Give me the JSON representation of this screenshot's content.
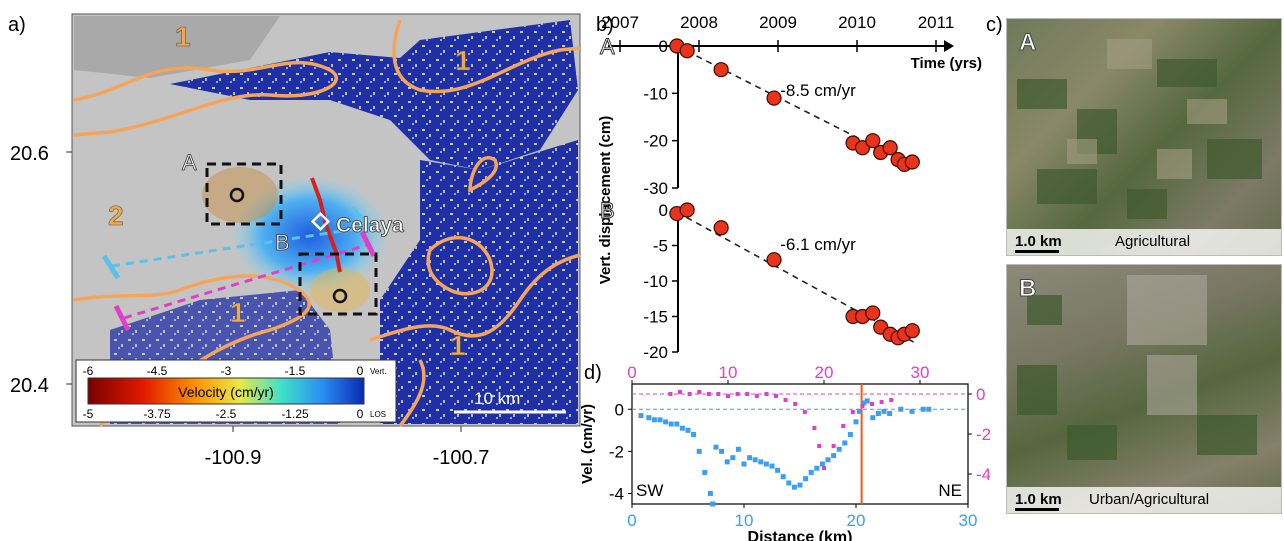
{
  "panel_labels": {
    "a": "a)",
    "b": "b)",
    "c": "c)",
    "d": "d)"
  },
  "map": {
    "lat_ticks": [
      "20.6",
      "20.4"
    ],
    "lon_ticks": [
      "-100.9",
      "-100.7"
    ],
    "zone_labels": [
      "1",
      "1",
      "2",
      "1",
      "1"
    ],
    "box_labels": [
      "A",
      "B"
    ],
    "city_label": "Celaya",
    "scalebar": "10 km",
    "colorbar": {
      "title": "Velocity (cm/yr)",
      "vert_ticks": [
        "-6",
        "-4.5",
        "-3",
        "-1.5",
        "0"
      ],
      "vert_label": "Vert.",
      "los_ticks": [
        "-5",
        "-3.75",
        "-2.5",
        "-1.25",
        "0"
      ],
      "los_label": "LOS"
    },
    "colors": {
      "zone_line": "#f5a55a",
      "profile_cyan": "#5bc0eb",
      "profile_magenta": "#e040c8"
    }
  },
  "chart_data": [
    {
      "type": "scatter",
      "panel": "b",
      "title": "",
      "xlabel": "Time (yrs)",
      "ylabel": "Vert. displacement (cm)",
      "xticks": [
        "2007",
        "2008",
        "2009",
        "2010",
        "2011"
      ],
      "xlim": [
        2007,
        2011
      ],
      "series": [
        {
          "name": "A",
          "rate_label": "-8.5 cm/yr",
          "ylim": [
            -30,
            0
          ],
          "yticks": [
            "0",
            "-10",
            "-20",
            "-30"
          ],
          "x": [
            2007.72,
            2007.85,
            2008.28,
            2008.95,
            2009.95,
            2010.07,
            2010.2,
            2010.3,
            2010.42,
            2010.52,
            2010.6,
            2010.7
          ],
          "y": [
            0,
            -1,
            -5,
            -11,
            -20.5,
            -21.5,
            -20,
            -22.5,
            -21.5,
            -24,
            -25,
            -24.5
          ],
          "trend": {
            "x": [
              2007.72,
              2010.75
            ],
            "y": [
              0,
              -25.7
            ]
          }
        },
        {
          "name": "B",
          "rate_label": "-6.1 cm/yr",
          "ylim": [
            -20,
            0
          ],
          "yticks": [
            "0",
            "-5",
            "-10",
            "-15",
            "-20"
          ],
          "x": [
            2007.72,
            2007.85,
            2008.28,
            2008.95,
            2009.95,
            2010.07,
            2010.2,
            2010.3,
            2010.42,
            2010.52,
            2010.6,
            2010.7
          ],
          "y": [
            -0.5,
            0,
            -2.5,
            -7,
            -15,
            -15,
            -14.5,
            -16.5,
            -17.5,
            -18,
            -17.5,
            -17
          ],
          "trend": {
            "x": [
              2007.72,
              2010.75
            ],
            "y": [
              -0.3,
              -18.8
            ]
          }
        }
      ],
      "colors": {
        "marker": "#e8341a",
        "trend": "#222222"
      }
    },
    {
      "type": "scatter",
      "panel": "d",
      "title": "",
      "xlabel": "Distance (km)",
      "ylabel": "Vel. (cm/yr)",
      "x_bottom_ticks": [
        "0",
        "10",
        "20",
        "30"
      ],
      "x_top_ticks": [
        "0",
        "10",
        "20",
        "30"
      ],
      "y_left_ticks": [
        "0",
        "-2",
        "-4"
      ],
      "y_right_ticks": [
        "0",
        "-2",
        "-4"
      ],
      "left_label": "SW",
      "right_label": "NE",
      "fault_distance_km": 20.5,
      "series": [
        {
          "name": "",
          "axis": "bottom-left",
          "xlim": [
            0,
            30
          ],
          "ylim": [
            -4.5,
            1.2
          ],
          "x": [
            0.8,
            1.5,
            2,
            2.5,
            3,
            3.5,
            4,
            4.5,
            5,
            5.5,
            6,
            6.5,
            7,
            7.2,
            7.5,
            8,
            8.5,
            9,
            9.5,
            10,
            10.5,
            11,
            11.5,
            12,
            12.5,
            13,
            13.5,
            14,
            14.5,
            15,
            15.5,
            16,
            16.5,
            17,
            17.5,
            18,
            18.5,
            19,
            19.5,
            20,
            20.3,
            20.7,
            21,
            21.5,
            22,
            22.5,
            23,
            24,
            25,
            26,
            26.5
          ],
          "y": [
            -0.3,
            -0.4,
            -0.5,
            -0.5,
            -0.6,
            -0.7,
            -0.7,
            -0.9,
            -1.0,
            -1.2,
            -2.0,
            -3.0,
            -4.0,
            -4.5,
            -1.8,
            -2.0,
            -2.5,
            -2.3,
            -1.9,
            -2.6,
            -2.3,
            -2.4,
            -2.5,
            -2.6,
            -2.7,
            -2.9,
            -3.2,
            -3.5,
            -3.7,
            -3.6,
            -3.3,
            -3.0,
            -2.8,
            -2.6,
            -2.4,
            -2.2,
            -1.9,
            -1.6,
            -1.2,
            -0.6,
            -0.1,
            0.3,
            0.4,
            -0.4,
            -0.2,
            -0.1,
            -0.2,
            0.0,
            -0.1,
            0.0,
            0.0
          ],
          "color": "#3a9ef5"
        },
        {
          "name": "",
          "axis": "top-right",
          "xlim": [
            0,
            35
          ],
          "ylim": [
            -5.5,
            0.5
          ],
          "x": [
            4,
            5,
            6,
            7,
            8,
            9,
            10,
            11,
            12,
            13,
            14,
            15,
            16,
            17,
            18,
            19,
            19.5,
            20,
            21,
            22,
            23,
            24,
            25,
            26,
            27
          ],
          "y": [
            0.0,
            0.1,
            0.0,
            0.1,
            0.0,
            0.0,
            -0.1,
            0.0,
            0.0,
            -0.1,
            0.0,
            -0.1,
            -0.3,
            -0.5,
            -0.9,
            -1.7,
            -2.6,
            -3.7,
            -2.6,
            -1.6,
            -0.9,
            -0.6,
            -0.5,
            -0.4,
            -0.3
          ],
          "color": "#e040c8"
        }
      ]
    }
  ],
  "photos": [
    {
      "letter": "A",
      "scale": "1.0 km",
      "caption": "Agricultural"
    },
    {
      "letter": "B",
      "scale": "1.0 km",
      "caption": "Urban/Agricultural"
    }
  ]
}
